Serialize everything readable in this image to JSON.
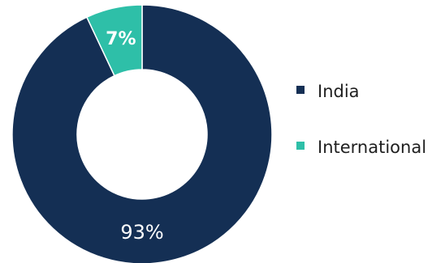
{
  "chart_data": {
    "type": "pie",
    "variant": "donut",
    "categories": [
      "India",
      "International"
    ],
    "values": [
      93,
      7
    ],
    "labels": [
      "93%",
      "7%"
    ],
    "colors": [
      "#142f54",
      "#2ebfa8"
    ],
    "legend": "right",
    "title": ""
  }
}
